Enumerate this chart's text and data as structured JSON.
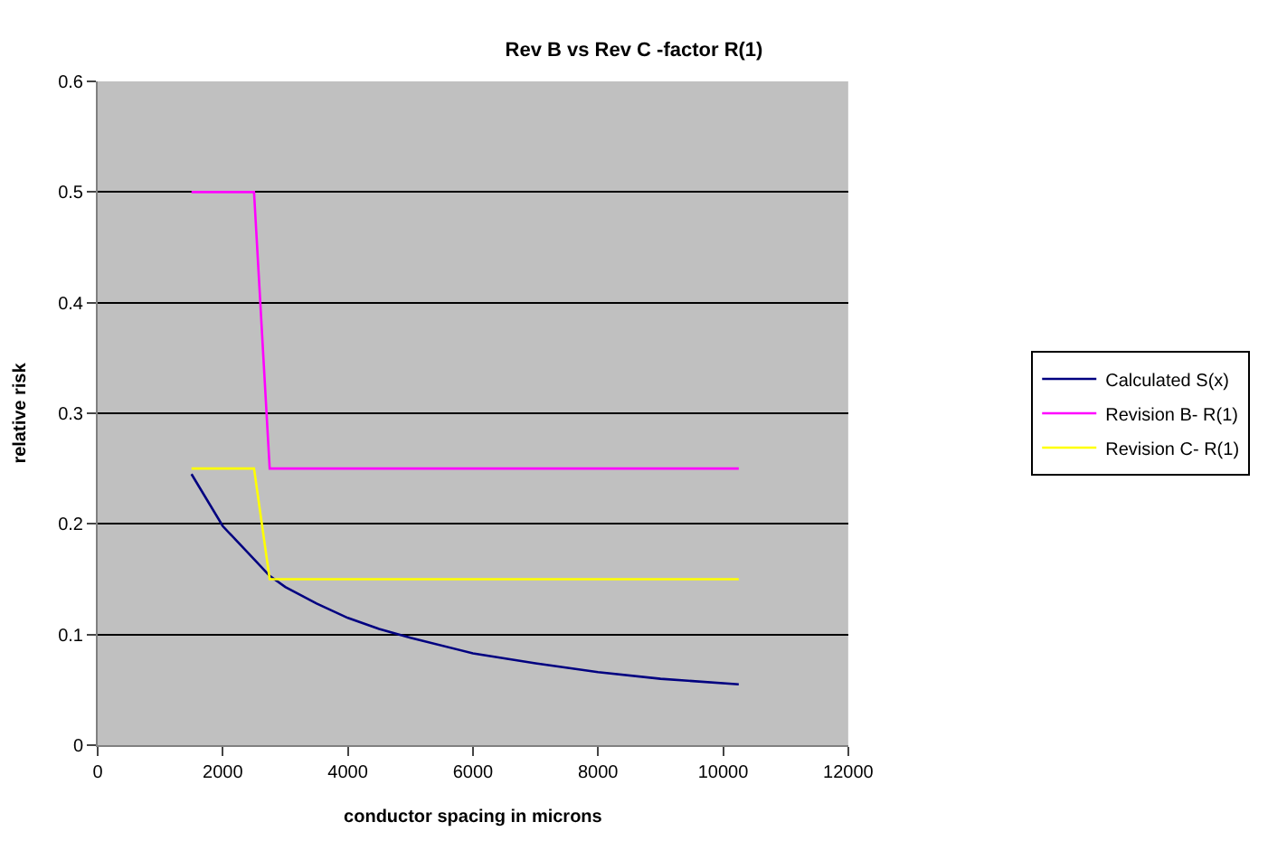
{
  "chart_data": {
    "type": "line",
    "title": "Rev B vs Rev C -factor R(1)",
    "xlabel": "conductor spacing in microns",
    "ylabel": "relative risk",
    "xlim": [
      0,
      12000
    ],
    "xticks": [
      0,
      2000,
      4000,
      6000,
      8000,
      10000,
      12000
    ],
    "ylim": [
      0,
      0.6
    ],
    "yticks": [
      0,
      0.1,
      0.2,
      0.3,
      0.4,
      0.5,
      0.6
    ],
    "grid": "y",
    "legend": "right",
    "marker": "none",
    "line_style": "solid",
    "series": [
      {
        "name": "Calculated S(x)",
        "color": "#000080",
        "x": [
          1500,
          2000,
          2500,
          2750,
          3000,
          3500,
          4000,
          4500,
          5000,
          6000,
          7000,
          8000,
          9000,
          10250
        ],
        "values": [
          0.245,
          0.198,
          0.168,
          0.153,
          0.143,
          0.128,
          0.115,
          0.105,
          0.097,
          0.083,
          0.074,
          0.066,
          0.06,
          0.055
        ]
      },
      {
        "name": "Revision B- R(1)",
        "color": "#ff00ff",
        "x": [
          1500,
          2500,
          2750,
          10250
        ],
        "values": [
          0.5,
          0.5,
          0.25,
          0.25
        ]
      },
      {
        "name": "Revision C- R(1)",
        "color": "#ffff00",
        "x": [
          1500,
          2500,
          2750,
          10250
        ],
        "values": [
          0.25,
          0.25,
          0.15,
          0.15
        ]
      }
    ]
  }
}
